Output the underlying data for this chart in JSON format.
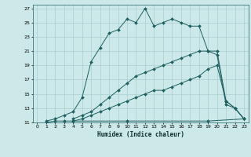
{
  "xlabel": "Humidex (Indice chaleur)",
  "bg_color": "#cce8e8",
  "line_color": "#1e6060",
  "grid_color": "#aacfcf",
  "xlim": [
    -0.5,
    23.5
  ],
  "ylim": [
    11,
    27.5
  ],
  "xticks": [
    0,
    1,
    2,
    3,
    4,
    5,
    6,
    7,
    8,
    9,
    10,
    11,
    12,
    13,
    14,
    15,
    16,
    17,
    18,
    19,
    20,
    21,
    22,
    23
  ],
  "yticks": [
    11,
    13,
    15,
    17,
    19,
    21,
    23,
    25,
    27
  ],
  "line1_x": [
    1,
    2,
    3,
    4,
    5,
    6,
    7,
    8,
    9,
    10,
    11,
    12,
    13,
    14,
    15,
    16,
    17,
    18,
    19,
    20,
    21,
    22,
    23
  ],
  "line1_y": [
    11.2,
    11.5,
    12.0,
    12.5,
    14.5,
    19.5,
    21.5,
    23.5,
    24.0,
    25.5,
    25.0,
    27.0,
    24.5,
    25.0,
    25.5,
    25.0,
    24.5,
    24.5,
    21.0,
    20.5,
    13.5,
    13.0,
    11.5
  ],
  "line2_x": [
    4,
    5,
    6,
    7,
    8,
    9,
    10,
    11,
    12,
    13,
    14,
    15,
    16,
    17,
    18,
    19,
    20,
    21,
    22,
    23
  ],
  "line2_y": [
    11.5,
    12.0,
    12.5,
    13.5,
    14.5,
    15.5,
    16.5,
    17.5,
    18.0,
    18.5,
    19.0,
    19.5,
    20.0,
    20.5,
    21.0,
    21.0,
    21.0,
    14.0,
    13.0,
    11.5
  ],
  "line3_x": [
    4,
    5,
    6,
    7,
    8,
    9,
    10,
    11,
    12,
    13,
    14,
    15,
    16,
    17,
    18,
    19,
    20,
    21,
    22,
    23
  ],
  "line3_y": [
    11.2,
    11.5,
    12.0,
    12.5,
    13.0,
    13.5,
    14.0,
    14.5,
    15.0,
    15.5,
    15.5,
    16.0,
    16.5,
    17.0,
    17.5,
    18.5,
    19.0,
    14.0,
    13.0,
    11.5
  ],
  "line4_x": [
    1,
    2,
    3,
    4,
    10,
    19,
    23
  ],
  "line4_y": [
    11.0,
    11.2,
    11.2,
    11.2,
    11.2,
    11.2,
    11.5
  ]
}
